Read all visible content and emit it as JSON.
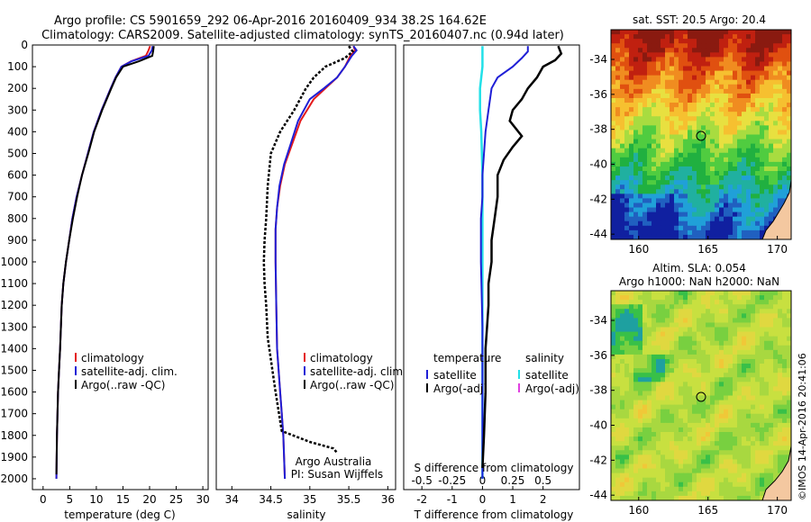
{
  "title_line1": "Argo profile: CS 5901659_292 06-Apr-2016 20160409_934 38.2S 164.62E",
  "title_line2": "Climatology: CARS2009. Satellite-adjusted climatology: synTS_20160407.nc (0.94d later)",
  "side_label": "©IMOS 14-Apr-2016 20:41:06",
  "credit_line1": "Argo Australia",
  "credit_line2": "PI: Susan Wijffels",
  "colors": {
    "clim": "#e41a1c",
    "sat": "#1f1fd6",
    "argo": "#000000",
    "sat_s": "#22e0e8",
    "argo_s": "#e040e0"
  },
  "chart_data": [
    {
      "type": "line",
      "xlabel": "temperature (deg C)",
      "xlim": [
        -2,
        31
      ],
      "xticks": [
        "0",
        "5",
        "10",
        "15",
        "20",
        "25",
        "30"
      ],
      "ylim": [
        2050,
        0
      ],
      "yticks": [
        "0",
        "100",
        "200",
        "300",
        "400",
        "500",
        "600",
        "700",
        "800",
        "900",
        "1000",
        "1100",
        "1200",
        "1300",
        "1400",
        "1500",
        "1600",
        "1700",
        "1800",
        "1900",
        "2000"
      ],
      "legend": [
        "climatology",
        "satellite-adj. clim.",
        "Argo(..raw -QC)"
      ],
      "series": [
        {
          "name": "climatology",
          "x": [
            20.1,
            19.8,
            19.3,
            16.5,
            14.7,
            13.6,
            12.7,
            11.0,
            9.5,
            8.4,
            7.3,
            6.3,
            5.5,
            4.9,
            4.3,
            3.8,
            3.5,
            3.2,
            3.0,
            2.8,
            2.6,
            2.5
          ],
          "y": [
            5,
            25,
            50,
            75,
            100,
            150,
            200,
            300,
            400,
            500,
            600,
            700,
            800,
            900,
            1000,
            1100,
            1200,
            1400,
            1500,
            1600,
            1800,
            2000
          ]
        },
        {
          "name": "satellite-adj. clim.",
          "x": [
            20.6,
            20.4,
            19.8,
            16.6,
            14.7,
            13.6,
            12.7,
            11.0,
            9.5,
            8.4,
            7.3,
            6.3,
            5.5,
            4.9,
            4.3,
            3.8,
            3.5,
            3.2,
            3.0,
            2.8,
            2.6,
            2.5
          ],
          "y": [
            5,
            25,
            50,
            75,
            100,
            150,
            200,
            300,
            400,
            500,
            600,
            700,
            800,
            900,
            1000,
            1100,
            1200,
            1400,
            1500,
            1600,
            1800,
            2000
          ]
        },
        {
          "name": "Argo(..raw -QC)",
          "x": [
            20.8,
            20.7,
            20.5,
            18.0,
            15.0,
            13.7,
            12.8,
            11.1,
            9.6,
            8.5,
            7.3,
            6.4,
            5.6,
            4.9,
            4.3,
            3.8,
            3.5,
            3.2,
            3.0,
            2.8,
            2.6,
            2.5
          ],
          "y": [
            5,
            25,
            50,
            75,
            100,
            150,
            200,
            300,
            400,
            500,
            600,
            700,
            800,
            900,
            1000,
            1100,
            1200,
            1400,
            1500,
            1600,
            1800,
            1980
          ]
        }
      ]
    },
    {
      "type": "line",
      "xlabel": "salinity",
      "xlim": [
        33.8,
        36.1
      ],
      "xticks": [
        "34",
        "34.5",
        "35",
        "35.5",
        "36"
      ],
      "ylim": [
        2050,
        0
      ],
      "legend": [
        "climatology",
        "satellite-adj. clim.",
        "Argo(..raw -QC)"
      ],
      "series": [
        {
          "name": "climatology",
          "x": [
            35.56,
            35.58,
            35.52,
            35.45,
            35.35,
            35.2,
            35.05,
            34.88,
            34.78,
            34.68,
            34.62,
            34.58,
            34.56,
            34.56,
            34.57,
            34.58,
            34.6,
            34.62,
            34.64,
            34.66,
            34.68
          ],
          "y": [
            5,
            25,
            50,
            100,
            150,
            200,
            250,
            350,
            450,
            550,
            650,
            750,
            850,
            1000,
            1200,
            1400,
            1500,
            1600,
            1700,
            1800,
            2000
          ]
        },
        {
          "name": "satellite-adj. clim.",
          "x": [
            35.56,
            35.6,
            35.54,
            35.45,
            35.35,
            35.18,
            35.0,
            34.85,
            34.76,
            34.67,
            34.61,
            34.58,
            34.56,
            34.56,
            34.57,
            34.58,
            34.6,
            34.62,
            34.64,
            34.66,
            34.68
          ],
          "y": [
            5,
            25,
            50,
            100,
            150,
            200,
            250,
            350,
            450,
            550,
            650,
            750,
            850,
            1000,
            1200,
            1400,
            1500,
            1600,
            1700,
            1800,
            2000
          ]
        },
        {
          "name": "Argo(..raw -QC)",
          "x": [
            35.5,
            35.55,
            35.45,
            35.2,
            35.05,
            34.95,
            34.8,
            34.62,
            34.5,
            34.46,
            34.44,
            34.42,
            34.41,
            34.42,
            34.44,
            34.46,
            34.5,
            34.56,
            34.64,
            35.0,
            35.3,
            35.35
          ],
          "y": [
            5,
            30,
            60,
            100,
            150,
            200,
            300,
            400,
            500,
            650,
            800,
            900,
            1000,
            1100,
            1200,
            1350,
            1450,
            1600,
            1780,
            1830,
            1860,
            1880
          ]
        }
      ]
    },
    {
      "type": "line",
      "xlabel": "T difference from climatology",
      "x2label": "S difference from climatology",
      "xlim": [
        -2.6,
        3.2
      ],
      "xticks": [
        "-2",
        "-1",
        "0",
        "1",
        "2"
      ],
      "x2lim": [
        -0.65,
        0.8
      ],
      "x2ticks": [
        "-0.5",
        "-0.25",
        "0",
        "0.25",
        "0.5"
      ],
      "ylim": [
        2050,
        0
      ],
      "legend_t_title": "temperature",
      "legend_s_title": "salinity",
      "legend": [
        "satellite",
        "Argo(-adj)",
        "satellite",
        "Argo(-adj)"
      ],
      "series": [
        {
          "name": "satellite",
          "x": [
            1.5,
            1.5,
            1.3,
            1.0,
            0.5,
            0.3,
            0.2,
            0.1,
            0.05,
            0.0,
            0.0,
            -0.05,
            -0.05,
            0.0,
            0.0,
            0.0
          ],
          "y": [
            5,
            30,
            60,
            100,
            150,
            200,
            300,
            400,
            500,
            600,
            700,
            800,
            1000,
            1300,
            1600,
            2000
          ]
        },
        {
          "name": "Argo(-adj)",
          "x": [
            2.5,
            2.6,
            2.4,
            2.0,
            1.8,
            1.5,
            1.3,
            1.0,
            0.9,
            1.3,
            1.0,
            0.7,
            0.5,
            0.5,
            0.4,
            0.3,
            0.3,
            0.2,
            0.2,
            0.15,
            0.1,
            0.1,
            0.05,
            0.0
          ],
          "y": [
            5,
            40,
            70,
            100,
            150,
            200,
            250,
            300,
            350,
            420,
            470,
            530,
            600,
            700,
            800,
            900,
            1000,
            1100,
            1200,
            1300,
            1400,
            1600,
            1800,
            1950
          ]
        },
        {
          "name": "satellite S",
          "x": [
            0.0,
            0.0,
            -0.02,
            -0.02,
            -0.01,
            0.0,
            0.0,
            0.0,
            0.0,
            0.0
          ],
          "y": [
            5,
            100,
            200,
            300,
            400,
            600,
            800,
            1200,
            1600,
            2000
          ]
        }
      ]
    },
    {
      "type": "heatmap",
      "title": "sat. SST: 20.5 Argo: 20.4",
      "xlim": [
        158,
        171
      ],
      "xticks": [
        "160",
        "165",
        "170"
      ],
      "ylim": [
        -44.3,
        -32.3
      ],
      "yticks": [
        "-34",
        "-36",
        "-38",
        "-40",
        "-42",
        "-44"
      ],
      "marker": [
        164.62,
        -38.2
      ],
      "colormap": [
        "#8a1a10",
        "#c02010",
        "#e05010",
        "#f08c20",
        "#f6c030",
        "#e8e040",
        "#a8dc40",
        "#50cc40",
        "#20b040",
        "#20b0a0",
        "#20a0d8",
        "#2060c0",
        "#1020a0"
      ]
    },
    {
      "type": "heatmap",
      "title_line1": "Altim. SLA: 0.054",
      "title_line2": "Argo h1000: NaN h2000: NaN",
      "xlim": [
        158,
        171
      ],
      "xticks": [
        "160",
        "165",
        "170"
      ],
      "ylim": [
        -44.3,
        -32.3
      ],
      "yticks": [
        "-34",
        "-36",
        "-38",
        "-40",
        "-42",
        "-44"
      ],
      "marker": [
        164.62,
        -38.2
      ]
    }
  ]
}
